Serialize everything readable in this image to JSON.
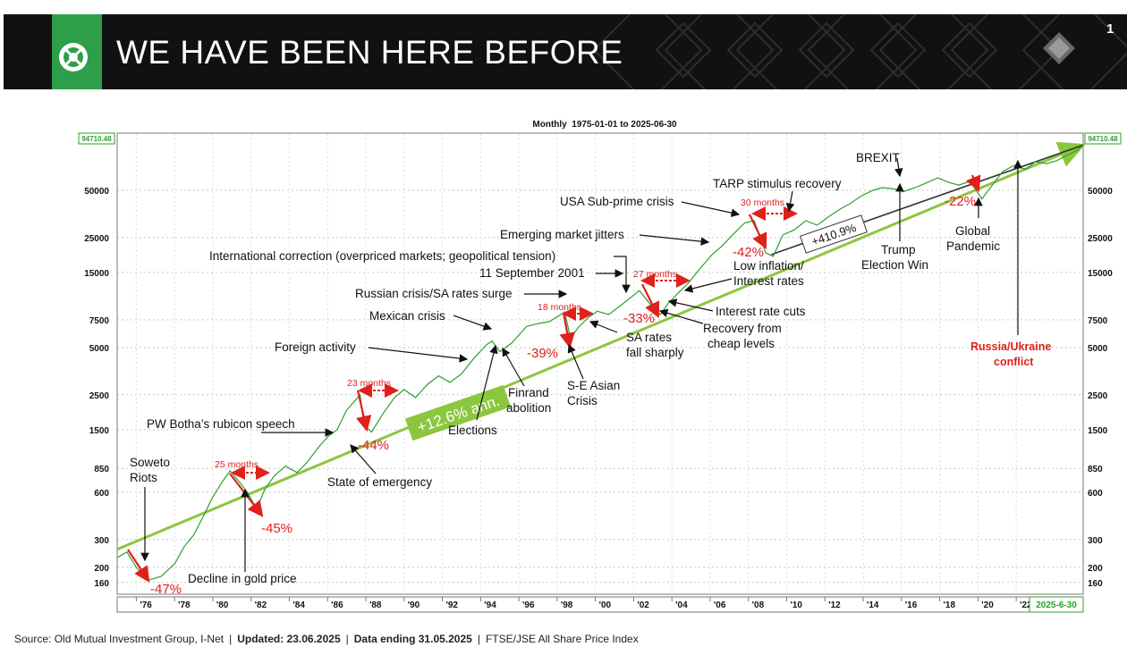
{
  "slide": {
    "title": "WE HAVE BEEN HERE BEFORE",
    "page_number": "1"
  },
  "footer": {
    "source": "Source: Old Mutual Investment Group, I-Net",
    "updated": "Updated: 23.06.2025",
    "data_ending": "Data ending 31.05.2025",
    "index": "FTSE/JSE All Share Price Index",
    "separator": "|"
  },
  "colors": {
    "series": "#2e9e2e",
    "trend": "#8cc63f",
    "arrow": "#e0201b",
    "black_trend": "#333333",
    "header": "#111111",
    "logo": "#2e9e4a"
  },
  "chart_data": {
    "type": "line",
    "title": "Monthly  1975-01-01 to 2025-06-30",
    "scale": "log",
    "ylim": [
      140,
      100000
    ],
    "xlim": [
      1975.0,
      2025.5
    ],
    "last_value_label": "94710.48",
    "end_date_label": "2025-6-30",
    "y_ticks": [
      160,
      200,
      300,
      600,
      850,
      1500,
      2500,
      5000,
      7500,
      15000,
      25000,
      50000
    ],
    "y_tick_labels": [
      "160",
      "200",
      "300",
      "600",
      "850",
      "1500",
      "2500",
      "5000",
      "7500",
      "15000",
      "25000",
      "50000"
    ],
    "x_ticks": [
      1976,
      1978,
      1980,
      1982,
      1984,
      1986,
      1988,
      1990,
      1992,
      1994,
      1996,
      1998,
      2000,
      2002,
      2004,
      2006,
      2008,
      2010,
      2012,
      2014,
      2016,
      2018,
      2020,
      2022
    ],
    "x_tick_labels": [
      "'76",
      "'78",
      "'80",
      "'82",
      "'84",
      "'86",
      "'88",
      "'90",
      "'92",
      "'94",
      "'96",
      "'98",
      "'00",
      "'02",
      "'04",
      "'06",
      "'08",
      "'10",
      "'12",
      "'14",
      "'16",
      "'18",
      "'20",
      "'22"
    ],
    "series": [
      {
        "name": "FTSE/JSE All Share Price Index",
        "points": [
          [
            1975.0,
            230
          ],
          [
            1975.5,
            250
          ],
          [
            1976.0,
            200
          ],
          [
            1976.6,
            165
          ],
          [
            1977.3,
            175
          ],
          [
            1978.0,
            210
          ],
          [
            1978.5,
            270
          ],
          [
            1979.0,
            320
          ],
          [
            1979.5,
            420
          ],
          [
            1980.0,
            560
          ],
          [
            1980.5,
            700
          ],
          [
            1980.9,
            820
          ],
          [
            1981.3,
            720
          ],
          [
            1981.8,
            600
          ],
          [
            1982.3,
            470
          ],
          [
            1982.7,
            620
          ],
          [
            1983.2,
            760
          ],
          [
            1983.8,
            880
          ],
          [
            1984.4,
            800
          ],
          [
            1984.9,
            920
          ],
          [
            1985.5,
            1150
          ],
          [
            1986.0,
            1350
          ],
          [
            1986.5,
            1500
          ],
          [
            1987.0,
            2000
          ],
          [
            1987.7,
            2500
          ],
          [
            1987.9,
            1600
          ],
          [
            1988.3,
            1450
          ],
          [
            1988.9,
            1900
          ],
          [
            1989.5,
            2400
          ],
          [
            1990.0,
            2700
          ],
          [
            1990.6,
            2400
          ],
          [
            1991.2,
            2900
          ],
          [
            1991.8,
            3300
          ],
          [
            1992.4,
            3000
          ],
          [
            1993.0,
            3400
          ],
          [
            1993.6,
            4200
          ],
          [
            1994.3,
            5200
          ],
          [
            1994.6,
            5500
          ],
          [
            1995.0,
            4700
          ],
          [
            1995.6,
            5300
          ],
          [
            1996.4,
            6800
          ],
          [
            1997.0,
            7100
          ],
          [
            1997.6,
            7300
          ],
          [
            1998.4,
            8400
          ],
          [
            1998.7,
            5700
          ],
          [
            1999.1,
            6700
          ],
          [
            1999.6,
            7700
          ],
          [
            2000.1,
            8500
          ],
          [
            2000.7,
            8100
          ],
          [
            2001.4,
            9400
          ],
          [
            2002.3,
            11500
          ],
          [
            2002.9,
            9300
          ],
          [
            2003.4,
            8100
          ],
          [
            2003.8,
            9500
          ],
          [
            2004.3,
            11000
          ],
          [
            2004.9,
            13000
          ],
          [
            2005.4,
            15500
          ],
          [
            2006.1,
            19500
          ],
          [
            2006.6,
            22000
          ],
          [
            2007.1,
            25500
          ],
          [
            2007.8,
            31000
          ],
          [
            2008.3,
            32000
          ],
          [
            2008.9,
            20000
          ],
          [
            2009.3,
            19000
          ],
          [
            2009.8,
            26000
          ],
          [
            2010.4,
            28000
          ],
          [
            2011.0,
            32000
          ],
          [
            2011.6,
            30000
          ],
          [
            2012.2,
            34000
          ],
          [
            2012.8,
            38000
          ],
          [
            2013.3,
            41000
          ],
          [
            2013.9,
            46000
          ],
          [
            2014.5,
            50000
          ],
          [
            2015.0,
            52000
          ],
          [
            2015.6,
            51000
          ],
          [
            2016.1,
            49000
          ],
          [
            2016.7,
            52000
          ],
          [
            2017.2,
            55000
          ],
          [
            2017.9,
            60000
          ],
          [
            2018.5,
            56000
          ],
          [
            2019.0,
            54000
          ],
          [
            2019.6,
            57000
          ],
          [
            2020.2,
            44000
          ],
          [
            2020.8,
            55000
          ],
          [
            2021.3,
            66000
          ],
          [
            2021.9,
            72000
          ],
          [
            2022.5,
            68000
          ],
          [
            2023.0,
            76000
          ],
          [
            2023.6,
            74000
          ],
          [
            2024.1,
            77000
          ],
          [
            2024.7,
            84000
          ],
          [
            2025.2,
            90000
          ],
          [
            2025.4,
            94710
          ]
        ]
      }
    ],
    "trend_lines": [
      {
        "name": "+12.6% ann.",
        "from": [
          1975.0,
          260
        ],
        "to": [
          2025.5,
          97000
        ]
      },
      {
        "name": "+410.9%",
        "from": [
          2009.2,
          19500
        ],
        "to": [
          2025.5,
          97000
        ]
      }
    ],
    "drawdowns": [
      {
        "label": "-47%",
        "duration_label": ""
      },
      {
        "label": "-45%",
        "duration_label": "25 months"
      },
      {
        "label": "-44%",
        "duration_label": "23 months"
      },
      {
        "label": "-39%",
        "duration_label": "18 months"
      },
      {
        "label": "-33%",
        "duration_label": "27 months"
      },
      {
        "label": "-42%",
        "duration_label": "30 months"
      },
      {
        "label": "-22%",
        "duration_label": ""
      }
    ],
    "annotations": [
      "Soweto Riots",
      "Decline in gold price",
      "PW Botha’s rubicon speech",
      "State of emergency",
      "Foreign activity",
      "Elections",
      "Mexican crisis",
      "Finrand abolition",
      "Russian crisis/SA rates surge",
      "S-E Asian Crisis",
      "11 September 2001",
      "International correction (overpriced markets; geopolitical tension)",
      "SA rates fall sharply",
      "Recovery from cheap levels",
      "Interest rate cuts",
      "Emerging market jitters",
      "Low inflation/ Interest rates",
      "USA Sub-prime crisis",
      "TARP stimulus recovery",
      "BREXIT",
      "Trump Election Win",
      "Global Pandemic",
      "Russia/Ukraine conflict"
    ]
  }
}
